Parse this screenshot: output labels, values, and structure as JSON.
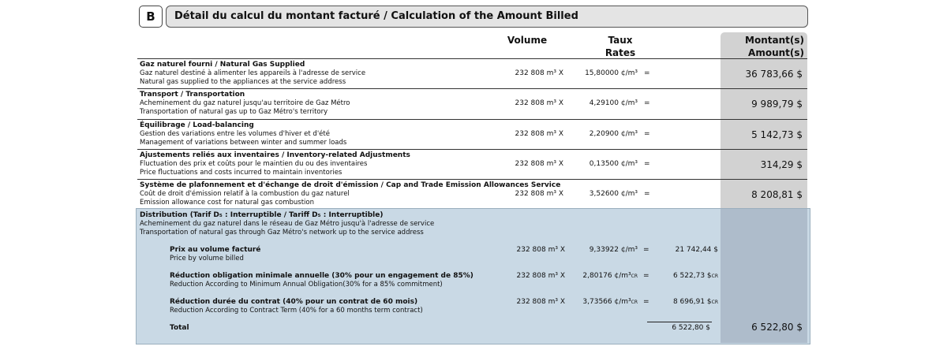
{
  "header": {
    "badge": "B",
    "title": "Détail du calcul du montant facturé / Calculation of the Amount Billed"
  },
  "columns": {
    "volume": "Volume",
    "rate_fr": "Taux",
    "rate_en": "Rates",
    "amount_fr": "Montant(s)",
    "amount_en": "Amount(s)"
  },
  "equals": "=",
  "sections": [
    {
      "title": "Gaz naturel fourni / Natural Gas Supplied",
      "line1": "Gaz naturel destiné à alimenter les appareils à l'adresse de service",
      "line2": "Natural gas supplied to the appliances at the service address",
      "volume": "232 808 m³ X",
      "rate": "15,80000 ¢/m³",
      "amount": "36 783,66 $"
    },
    {
      "title": "Transport / Transportation",
      "line1": "Acheminement du gaz naturel jusqu'au territoire de Gaz Métro",
      "line2": "Transportation of natural gas up to Gaz Métro's territory",
      "volume": "232 808 m³ X",
      "rate": "4,29100 ¢/m³",
      "amount": "9 989,79 $"
    },
    {
      "title": "Équilibrage / Load-balancing",
      "line1": "Gestion des variations entre les volumes d'hiver et d'été",
      "line2": "Management of variations between winter and summer loads",
      "volume": "232 808 m³ X",
      "rate": "2,20900 ¢/m³",
      "amount": "5 142,73 $"
    },
    {
      "title": "Ajustements reliés aux inventaires / Inventory-related Adjustments",
      "line1": "Fluctuation des prix et coûts pour le maintien du ou des inventaires",
      "line2": "Price fluctuations and costs incurred to maintain inventories",
      "volume": "232 808 m³ X",
      "rate": "0,13500 ¢/m³",
      "amount": "314,29 $"
    },
    {
      "title": "Système de plafonnement et d'échange de droit d'émission / Cap and Trade Emission Allowances Service",
      "line1": "Coût de droit d'émission relatif à la combustion du gaz naturel",
      "line2": "Emission allowance cost for natural gas combustion",
      "volume": "232 808 m³ X",
      "rate": "3,52600 ¢/m³",
      "amount": "8 208,81 $"
    }
  ],
  "distribution": {
    "title": "Distribution (Tarif D₅ : Interruptible / Tariff D₅ : Interruptible)",
    "line1": "Acheminement du gaz naturel dans le réseau de Gaz Métro jusqu'à l'adresse de service",
    "line2": "Transportation of natural gas through Gaz Métro's network up to the service address",
    "items": [
      {
        "title": "Prix au volume facturé",
        "subtitle": "Price by volume billed",
        "volume": "232 808 m³ X",
        "rate": "9,33922 ¢/m³",
        "rate_cr": "",
        "subtotal": "21 742,44 $",
        "subtotal_cr": ""
      },
      {
        "title": "Réduction obligation minimale annuelle (30% pour un engagement de 85%)",
        "subtitle": "Reduction According to Minimum Annual Obligation(30% for a 85% commitment)",
        "volume": "232 808 m³ X",
        "rate": "2,80176 ¢/m³",
        "rate_cr": "CR",
        "subtotal": "6 522,73 $",
        "subtotal_cr": "CR"
      },
      {
        "title": "Réduction durée du contrat (40% pour un contrat de 60 mois)",
        "subtitle": "Reduction According to Contract Term (40% for a 60 months term contract)",
        "volume": "232 808 m³ X",
        "rate": "3,73566 ¢/m³",
        "rate_cr": "CR",
        "subtotal": "8 696,91 $",
        "subtotal_cr": "CR"
      }
    ],
    "total_label": "Total",
    "total_subtotal": "6 522,80 $",
    "total_amount": "6 522,80 $"
  }
}
